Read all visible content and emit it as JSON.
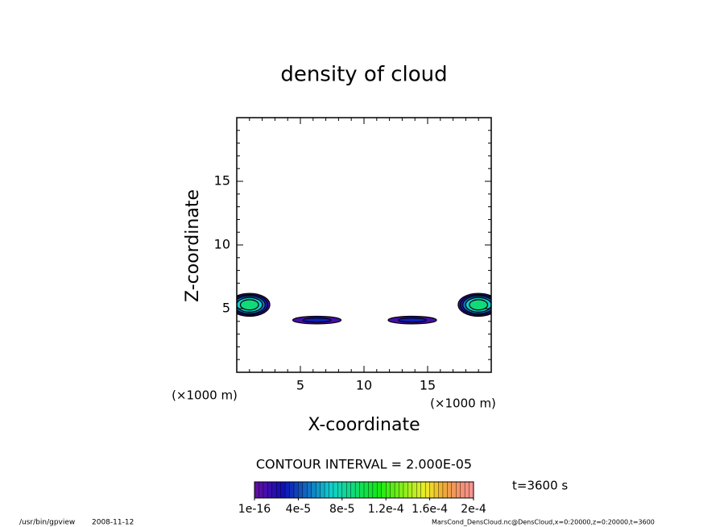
{
  "chart_data": {
    "type": "contour",
    "title": "density of cloud",
    "x_label": "X-coordinate",
    "y_label": "Z-coordinate",
    "x_unit": "(×1000 m)",
    "y_unit": "(×1000 m)",
    "xlim": [
      0,
      20
    ],
    "ylim": [
      0,
      20
    ],
    "xticks": [
      5,
      10,
      15
    ],
    "yticks": [
      5,
      10,
      15
    ],
    "minor_tick_step": 1,
    "contour_interval_text": "CONTOUR INTERVAL = 2.000E-05",
    "contour_interval": 2e-05,
    "blobs": [
      {
        "x": 1.0,
        "z": 5.3,
        "rx": 1.6,
        "rz": 0.9,
        "peak": 0.0001
      },
      {
        "x": 19.0,
        "z": 5.3,
        "rx": 1.6,
        "rz": 0.9,
        "peak": 0.0001
      },
      {
        "x": 6.3,
        "z": 4.1,
        "rx": 1.9,
        "rz": 0.3,
        "peak": 3e-05
      },
      {
        "x": 13.8,
        "z": 4.1,
        "rx": 1.9,
        "rz": 0.3,
        "peak": 3e-05
      }
    ],
    "colorbar": {
      "lim": [
        1e-16,
        0.0002
      ],
      "ticks": [
        1e-16,
        {
          "value": 4e-05,
          "label": "4e-5"
        },
        {
          "value": 8e-05,
          "label": "8e-5"
        },
        {
          "value": 0.00012,
          "label": "1.2e-4"
        },
        {
          "value": 0.00016,
          "label": "1.6e-4"
        },
        {
          "value": 0.0002,
          "label": "2e-4"
        }
      ]
    },
    "time_label": "t=3600 s",
    "program": "/usr/bin/gpview",
    "date": "2008-11-12",
    "source": "MarsCond_DensCloud.nc@DensCloud,x=0:20000,z=0:20000,t=3600"
  }
}
